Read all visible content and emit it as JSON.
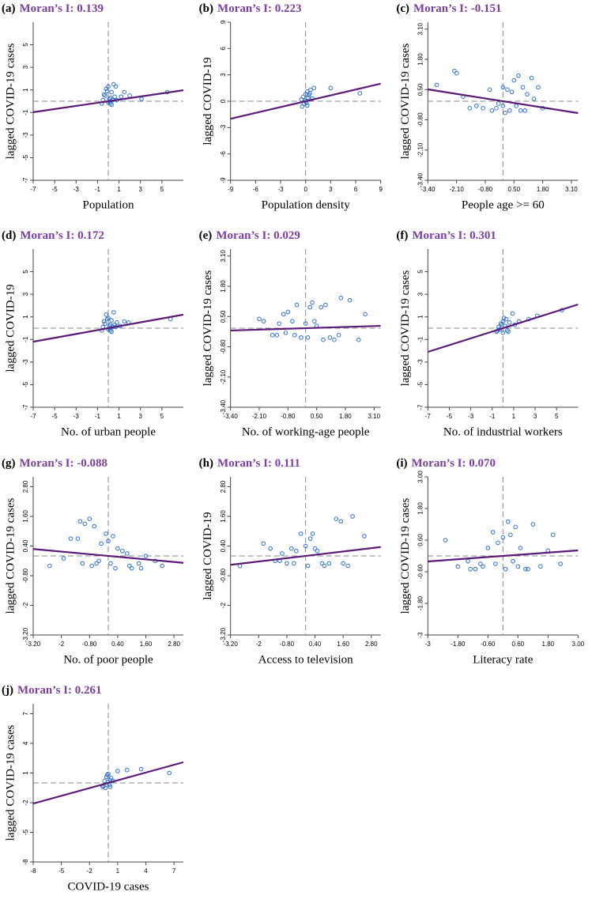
{
  "chart_data": [
    {
      "type": "scatter",
      "panel": "(a)",
      "title": "Moran’s I: 0.139",
      "x_label": "Population",
      "y_label": "lagged COVID-19 cases",
      "x": [
        -0.5,
        -0.3,
        -0.2,
        0,
        0.1,
        0.2,
        0.3,
        0.5,
        0.7,
        -0.4,
        0,
        0.2,
        0.4,
        -0.1,
        0.6,
        1.2,
        1.5,
        2,
        3.1,
        5.5,
        -0.6,
        0.1,
        0.8,
        0.3
      ],
      "y": [
        0.1,
        0.5,
        1.1,
        1.3,
        0.2,
        -0.2,
        0.8,
        1.5,
        1.3,
        0.6,
        -0.1,
        0.3,
        0.1,
        0.9,
        0.4,
        0.4,
        0.8,
        0.5,
        0.2,
        0.8,
        -0.2,
        0.0,
        0.1,
        -0.3
      ],
      "fit_line": {
        "x": [
          -7,
          7
        ],
        "y": [
          -0.97,
          0.97
        ]
      },
      "xlim": [
        -7,
        7
      ],
      "ylim": [
        -7,
        7
      ],
      "xticks": [
        -7,
        -5,
        -3,
        -1,
        1,
        3,
        5
      ],
      "yticks": [
        -7,
        -5,
        -3,
        -1,
        1,
        3,
        5
      ],
      "color": "#2f6fdc",
      "line_color": "#5a1a78"
    },
    {
      "type": "scatter",
      "panel": "(b)",
      "title": "Moran’s I: 0.223",
      "x_label": "Population density",
      "y_label": "lagged COVID-19",
      "x": [
        -0.5,
        -0.3,
        -0.2,
        0,
        0.2,
        0.4,
        0.6,
        1,
        0.1,
        -0.1,
        0.3,
        0.5,
        3,
        6.5,
        0.8,
        -0.4,
        0.2,
        0
      ],
      "y": [
        0.2,
        0.5,
        -0.3,
        0.8,
        1.1,
        0.7,
        1.3,
        1.5,
        -0.2,
        0.1,
        0.4,
        0.9,
        1.5,
        0.9,
        0.3,
        -0.6,
        -0.5,
        0
      ],
      "fit_line": {
        "x": [
          -9,
          9
        ],
        "y": [
          -2.0,
          2.0
        ]
      },
      "xlim": [
        -9,
        9
      ],
      "ylim": [
        -9,
        9
      ],
      "xticks": [
        -9,
        -6,
        -3,
        0,
        3,
        6,
        9
      ],
      "yticks": [
        -9,
        -6,
        -3,
        0,
        3,
        6,
        9
      ],
      "color": "#2f6fdc",
      "line_color": "#5a1a78"
    },
    {
      "type": "scatter",
      "panel": "(c)",
      "title": "Moran’s I: -0.151",
      "x_label": "People age >= 60",
      "y_label": "lagged COVID-19 cases",
      "x": [
        -2.2,
        -2.1,
        -3,
        -1.8,
        -1.2,
        -0.9,
        -0.5,
        -0.3,
        0,
        0.2,
        0.4,
        0.5,
        0.7,
        0.9,
        1.1,
        1.3,
        1.6,
        1.8,
        -0.6,
        0.1,
        0.3,
        -1.5,
        0.6,
        1.0,
        -0.2,
        0.8,
        1.4,
        0.0
      ],
      "y": [
        1.3,
        1.2,
        0.7,
        0.2,
        -0.2,
        -0.3,
        -0.4,
        -0.3,
        -0.2,
        0.5,
        0.4,
        0.9,
        1.1,
        0.6,
        0.3,
        1.0,
        0.6,
        -0.3,
        0.5,
        -0.5,
        -0.4,
        -0.3,
        -0.2,
        -0.4,
        -0.1,
        -0.4,
        0.1,
        0.6
      ],
      "fit_line": {
        "x": [
          -3.4,
          3.4
        ],
        "y": [
          0.51,
          -0.51
        ]
      },
      "xlim": [
        -3.4,
        3.4
      ],
      "ylim": [
        -3.4,
        3.4
      ],
      "xticks": [
        {
          "value": -3.4,
          "label": "-3.40"
        },
        {
          "value": -2.1,
          "label": "-2.10"
        },
        {
          "value": -0.8,
          "label": "-0.80"
        },
        {
          "value": 0.5,
          "label": "0.50"
        },
        {
          "value": 1.8,
          "label": "1.80"
        },
        {
          "value": 3.1,
          "label": "3.10"
        }
      ],
      "yticks": [
        {
          "value": -3.4,
          "label": "-3.40"
        },
        {
          "value": -2.1,
          "label": "-2.10"
        },
        {
          "value": -0.8,
          "label": "-0.80"
        },
        {
          "value": 0.5,
          "label": "0.50"
        },
        {
          "value": 1.8,
          "label": "1.80"
        },
        {
          "value": 3.1,
          "label": "3.10"
        }
      ],
      "color": "#2f6fdc",
      "line_color": "#5a1a78"
    },
    {
      "type": "scatter",
      "panel": "(d)",
      "title": "Moran’s I: 0.172",
      "x_label": "No. of urban people",
      "y_label": "lagged COVID-19",
      "x": [
        -0.5,
        -0.4,
        -0.2,
        0,
        0.1,
        0.2,
        0.3,
        0.5,
        0.8,
        -0.3,
        0,
        0.2,
        0.4,
        -0.1,
        0.6,
        1.1,
        1.5,
        1.9,
        5.8,
        -0.6,
        0.1,
        0.7,
        0.3
      ],
      "y": [
        0.1,
        0.6,
        1.2,
        0.9,
        0.2,
        -0.2,
        0.7,
        1.4,
        0.5,
        0.4,
        -0.1,
        0.3,
        0.1,
        0.8,
        0.3,
        0.2,
        0.6,
        0.5,
        0.8,
        -0.2,
        0.0,
        0.1,
        -0.3
      ],
      "fit_line": {
        "x": [
          -7,
          7
        ],
        "y": [
          -1.2,
          1.2
        ]
      },
      "xlim": [
        -7,
        7
      ],
      "ylim": [
        -7,
        7
      ],
      "xticks": [
        -7,
        -5,
        -3,
        -1,
        1,
        3,
        5
      ],
      "yticks": [
        -7,
        -5,
        -3,
        -1,
        1,
        3,
        5
      ],
      "color": "#2f6fdc",
      "line_color": "#5a1a78"
    },
    {
      "type": "scatter",
      "panel": "(e)",
      "title": "Moran’s I: 0.029",
      "x_label": "No. of working-age people",
      "y_label": "lagged COVID-19 cases",
      "x": [
        -2.1,
        -1.9,
        -1.5,
        -1.2,
        -1.0,
        -0.8,
        -0.6,
        -0.4,
        -0.2,
        0,
        0.2,
        0.3,
        0.5,
        0.7,
        0.9,
        1.1,
        1.3,
        1.6,
        2.0,
        2.4,
        2.7,
        -0.5,
        0.1,
        0.4,
        -1.3,
        0.8,
        1.5,
        -0.9
      ],
      "y": [
        0.4,
        0.3,
        -0.3,
        0.2,
        0.6,
        0.7,
        0.3,
        1.0,
        -0.4,
        0.2,
        0.9,
        1.1,
        0.1,
        0.9,
        1.0,
        -0.4,
        -0.5,
        1.3,
        1.2,
        -0.5,
        0.6,
        -0.3,
        -0.4,
        0.3,
        -0.3,
        -0.5,
        -0.3,
        -0.2
      ],
      "fit_line": {
        "x": [
          -3.4,
          3.4
        ],
        "y": [
          -0.1,
          0.1
        ]
      },
      "xlim": [
        -3.4,
        3.4
      ],
      "ylim": [
        -3.4,
        3.4
      ],
      "xticks": [
        {
          "value": -3.4,
          "label": "-3.40"
        },
        {
          "value": -2.1,
          "label": "-2.10"
        },
        {
          "value": -0.8,
          "label": "-0.80"
        },
        {
          "value": 0.5,
          "label": "0.50"
        },
        {
          "value": 1.8,
          "label": "1.80"
        },
        {
          "value": 3.1,
          "label": "3.10"
        }
      ],
      "yticks": [
        {
          "value": -3.4,
          "label": "-3.40"
        },
        {
          "value": -2.1,
          "label": "-2.10"
        },
        {
          "value": -0.8,
          "label": "-0.80"
        },
        {
          "value": 0.5,
          "label": "0.50"
        },
        {
          "value": 1.8,
          "label": "1.80"
        },
        {
          "value": 3.1,
          "label": "3.10"
        }
      ],
      "color": "#2f6fdc",
      "line_color": "#5a1a78"
    },
    {
      "type": "scatter",
      "panel": "(f)",
      "title": "Moran’s I: 0.301",
      "x_label": "No. of industrial workers",
      "y_label": "lagged COVID-19 cases",
      "x": [
        -0.6,
        -0.4,
        -0.2,
        0,
        0.1,
        0.2,
        0.4,
        0.6,
        0.9,
        -0.3,
        0,
        0.3,
        -0.1,
        1.1,
        1.5,
        2.4,
        3.2,
        5.5,
        -0.5,
        0.5
      ],
      "y": [
        -0.3,
        0.1,
        0.4,
        0.6,
        0.9,
        0.2,
        -0.2,
        0.5,
        1.3,
        -0.1,
        -0.4,
        0.8,
        0.3,
        0.3,
        0.6,
        0.8,
        1.1,
        1.6,
        -0.2,
        -0.3
      ],
      "fit_line": {
        "x": [
          -7,
          7
        ],
        "y": [
          -2.1,
          2.1
        ]
      },
      "xlim": [
        -7,
        7
      ],
      "ylim": [
        -7,
        7
      ],
      "xticks": [
        -7,
        -5,
        -3,
        -1,
        1,
        3,
        5
      ],
      "yticks": [
        -7,
        -5,
        -3,
        -1,
        1,
        3,
        5
      ],
      "color": "#2f6fdc",
      "line_color": "#5a1a78"
    },
    {
      "type": "scatter",
      "panel": "(g)",
      "title": "Moran’s I: -0.088",
      "x_label": "No. of poor people",
      "y_label": "lagged COVID-19 cases",
      "x": [
        -2.5,
        -1.9,
        -1.6,
        -1.3,
        -1.2,
        -1.0,
        -0.8,
        -0.6,
        -0.5,
        -0.3,
        -0.1,
        0,
        0.2,
        0.4,
        0.6,
        0.8,
        1.0,
        1.3,
        1.6,
        2.0,
        2.3,
        -0.7,
        0.3,
        -1.1,
        0.9,
        1.4,
        -0.4,
        0.1
      ],
      "y": [
        -0.4,
        -0.1,
        0.7,
        0.7,
        1.4,
        1.3,
        1.5,
        1.2,
        -0.3,
        0.5,
        0.9,
        0.6,
        0.8,
        0.3,
        0.2,
        0.1,
        -0.5,
        -0.3,
        0.0,
        -0.2,
        -0.4,
        -0.4,
        -0.5,
        -0.3,
        -0.4,
        -0.5,
        -0.2,
        -0.3
      ],
      "fit_line": {
        "x": [
          -3.2,
          3.2
        ],
        "y": [
          0.28,
          -0.28
        ]
      },
      "xlim": [
        -3.2,
        3.2
      ],
      "ylim": [
        -3.2,
        3.2
      ],
      "xticks": [
        {
          "value": -3.2,
          "label": "-3.20"
        },
        -2,
        {
          "value": -0.8,
          "label": "-0.80"
        },
        {
          "value": 0.4,
          "label": "0.40"
        },
        {
          "value": 1.6,
          "label": "1.60"
        },
        {
          "value": 2.8,
          "label": "2.80"
        }
      ],
      "yticks": [
        {
          "value": -3.2,
          "label": "-3.20"
        },
        -2,
        {
          "value": -0.8,
          "label": "-0.80"
        },
        {
          "value": 0.4,
          "label": "0.40"
        },
        {
          "value": 1.6,
          "label": "1.60"
        },
        {
          "value": 2.8,
          "label": "2.80"
        }
      ],
      "color": "#2f6fdc",
      "line_color": "#5a1a78"
    },
    {
      "type": "scatter",
      "panel": "(h)",
      "title": "Moran’s I: 0.111",
      "x_label": "Access to television",
      "y_label": "lagged COVID-19",
      "x": [
        -2.8,
        -1.8,
        -1.5,
        -1.3,
        -1.0,
        -0.8,
        -0.6,
        -0.4,
        -0.2,
        0,
        0.2,
        0.3,
        0.5,
        0.8,
        1.0,
        1.3,
        1.5,
        1.6,
        2.0,
        2.5,
        -0.5,
        0.1,
        0.7,
        -1.1,
        1.8,
        0.4
      ],
      "y": [
        -0.4,
        0.5,
        0.3,
        -0.2,
        0.1,
        -0.3,
        0.3,
        0.2,
        0.9,
        0.4,
        0.7,
        0.9,
        0.2,
        -0.4,
        -0.3,
        1.5,
        1.4,
        -0.3,
        1.6,
        0.8,
        -0.3,
        -0.4,
        -0.3,
        -0.2,
        -0.4,
        0.3
      ],
      "fit_line": {
        "x": [
          -3.2,
          3.2
        ],
        "y": [
          -0.36,
          0.36
        ]
      },
      "xlim": [
        -3.2,
        3.2
      ],
      "ylim": [
        -3.2,
        3.2
      ],
      "xticks": [
        {
          "value": -3.2,
          "label": "-3.20"
        },
        -2,
        {
          "value": -0.8,
          "label": "-0.80"
        },
        {
          "value": 0.4,
          "label": "0.40"
        },
        {
          "value": 1.6,
          "label": "1.60"
        },
        {
          "value": 2.8,
          "label": "2.80"
        }
      ],
      "yticks": [
        {
          "value": -3.2,
          "label": "-3.20"
        },
        -2,
        {
          "value": -0.8,
          "label": "-0.80"
        },
        {
          "value": 0.4,
          "label": "0.40"
        },
        {
          "value": 1.6,
          "label": "1.60"
        },
        {
          "value": 2.8,
          "label": "2.80"
        }
      ],
      "color": "#2f6fdc",
      "line_color": "#5a1a78"
    },
    {
      "type": "scatter",
      "panel": "(i)",
      "title": "Moran’s I: 0.070",
      "x_label": "Literacy rate",
      "y_label": "lagged COVID-19 cases",
      "x": [
        -2.3,
        -1.8,
        -1.4,
        -1.1,
        -0.9,
        -0.6,
        -0.4,
        -0.2,
        0,
        0.2,
        0.3,
        0.5,
        0.7,
        0.9,
        1.2,
        1.5,
        1.8,
        2.0,
        2.3,
        -0.8,
        0.1,
        0.6,
        -1.3,
        1.0,
        0.4,
        -0.3
      ],
      "y": [
        0.6,
        -0.4,
        -0.2,
        -0.5,
        -0.3,
        0.3,
        0.9,
        0.5,
        0.7,
        1.3,
        0.8,
        1.1,
        0.3,
        -0.5,
        1.2,
        -0.4,
        0.2,
        0.8,
        -0.3,
        -0.4,
        -0.5,
        -0.4,
        -0.5,
        -0.5,
        -0.2,
        -0.3
      ],
      "fit_line": {
        "x": [
          -3,
          3
        ],
        "y": [
          -0.21,
          0.21
        ]
      },
      "xlim": [
        -3,
        3
      ],
      "ylim": [
        -3,
        3
      ],
      "xticks": [
        -3,
        {
          "value": -1.8,
          "label": "-1.80"
        },
        {
          "value": -0.6,
          "label": "-0.60"
        },
        {
          "value": 0.6,
          "label": "0.60"
        },
        {
          "value": 1.8,
          "label": "1.80"
        },
        {
          "value": 3,
          "label": "3.00"
        }
      ],
      "yticks": [
        -3,
        {
          "value": -1.8,
          "label": "-1.80"
        },
        {
          "value": -0.6,
          "label": "-0.60"
        },
        {
          "value": 0.6,
          "label": "0.60"
        },
        {
          "value": 1.8,
          "label": "1.80"
        },
        {
          "value": 3,
          "label": "3.00"
        }
      ],
      "color": "#2f6fdc",
      "line_color": "#5a1a78"
    },
    {
      "type": "scatter",
      "panel": "(j)",
      "title": "Moran’s I: 0.261",
      "x_label": "COVID-19 cases",
      "y_label": "lagged COVID-19 cases",
      "x": [
        -0.6,
        -0.4,
        -0.2,
        0,
        0.1,
        0.2,
        -0.3,
        0.3,
        -0.1,
        0.5,
        1.0,
        2.0,
        3.5,
        6.5,
        -0.5,
        0.2,
        0
      ],
      "y": [
        -0.4,
        0.2,
        0.6,
        0.9,
        -0.2,
        0.3,
        -0.5,
        0.5,
        0.8,
        0.2,
        1.2,
        1.3,
        1.4,
        1.0,
        -0.3,
        -0.4,
        0.1
      ],
      "fit_line": {
        "x": [
          -8,
          8
        ],
        "y": [
          -2.09,
          2.09
        ]
      },
      "xlim": [
        -8,
        8
      ],
      "ylim": [
        -8,
        8
      ],
      "xticks": [
        -8,
        -5,
        -2,
        1,
        4,
        7
      ],
      "yticks": [
        -8,
        -5,
        -2,
        1,
        4,
        7
      ],
      "color": "#2f6fdc",
      "line_color": "#5a1a78"
    }
  ]
}
